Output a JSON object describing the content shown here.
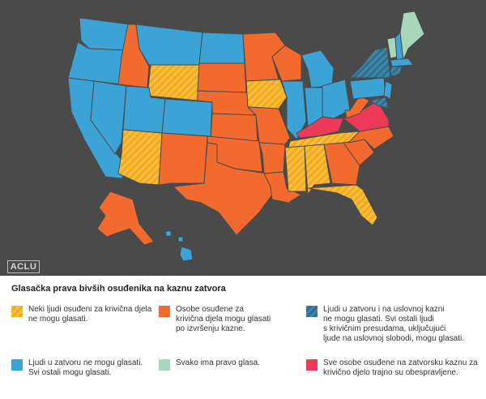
{
  "logo": "ACLU",
  "legend": {
    "title": "Glasačka prava bivših osuđenika na kaznu zatvora",
    "items": [
      {
        "id": "partial",
        "label": "Neki ljudi osuđeni za krivična djela\nne mogu glasati.",
        "color": "#f7a823",
        "pattern": "stripes-orange"
      },
      {
        "id": "after-sentence",
        "label": "Osobe osuđene za\nkrivična djela mogu glasati\npo izvršenju kazne.",
        "color": "#f26a2e",
        "pattern": "solid"
      },
      {
        "id": "prison-parole",
        "label": "Ljudi u zatvoru i na uslovnoj kazni\nne mogu glasati. Svi ostali ljudi\ns krivičnim presudama, uključujući\n ljude na uslovnoj slobodi, mogu glasati.",
        "color": "#2f6e8e",
        "pattern": "stripes-blue"
      },
      {
        "id": "prison-only",
        "label": "Ljudi u zatvoru ne mogu glasati.\nSvi ostali mogu glasati.",
        "color": "#3ba3d6",
        "pattern": "solid"
      },
      {
        "id": "everyone",
        "label": "Svako ima pravo glasa.",
        "color": "#a8d8b9",
        "pattern": "solid"
      },
      {
        "id": "permanent",
        "label": "Sve osobe osuđene na zatvorsku kaznu za\nkrivično djelo trajno su obespravljene.",
        "color": "#ee3a59",
        "pattern": "solid"
      }
    ]
  },
  "colors": {
    "background": "#4a4a4a",
    "border": "#4a4a4a",
    "blue": "#3ba3d6",
    "orange": "#f26a2e",
    "yellow": "#f7a823",
    "red": "#ee3a59",
    "green": "#a8d8b9",
    "darkblue": "#2f6e8e"
  }
}
